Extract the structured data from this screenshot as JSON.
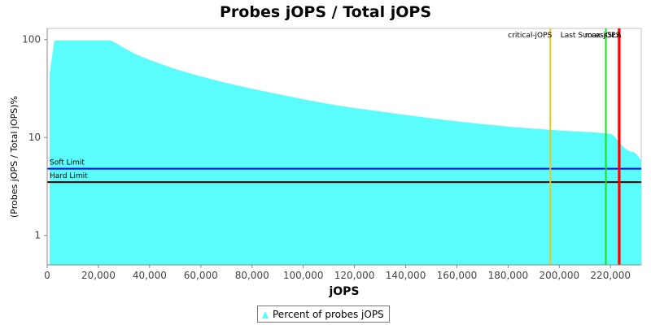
{
  "chart_data": {
    "type": "area",
    "title": "Probes jOPS / Total jOPS",
    "xlabel": "jOPS",
    "ylabel": "(Probes jOPS / Total jOPS)%",
    "xlim": [
      0,
      232000
    ],
    "ylim": [
      0.5,
      130
    ],
    "yscale": "log",
    "x_ticks": [
      0,
      20000,
      40000,
      60000,
      80000,
      100000,
      120000,
      140000,
      160000,
      180000,
      200000,
      220000
    ],
    "x_tick_labels": [
      "0",
      "20,000",
      "40,000",
      "60,000",
      "80,000",
      "100,000",
      "120,000",
      "140,000",
      "160,000",
      "180,000",
      "200,000",
      "220,000"
    ],
    "y_ticks": [
      1,
      10,
      100
    ],
    "y_tick_labels": [
      "1",
      "10",
      "100"
    ],
    "grid": false,
    "legend": "bottom",
    "series": [
      {
        "name": "Percent of probes jOPS",
        "color": "#5afcfc",
        "x": [
          1000,
          2800,
          4000,
          10000,
          20000,
          24800,
          26500,
          30000,
          35000,
          40000,
          50000,
          60000,
          70000,
          80000,
          90000,
          100000,
          110000,
          120000,
          130000,
          140000,
          150000,
          160000,
          170000,
          180000,
          190000,
          200000,
          210000,
          215000,
          219000,
          220500,
          221500,
          223000,
          225000,
          227000,
          229000,
          230000,
          231000,
          232000
        ],
        "y": [
          45,
          97,
          98,
          98,
          98,
          98,
          93,
          82,
          70,
          62,
          50,
          42,
          36,
          31.5,
          27.8,
          24.5,
          22,
          20,
          18.4,
          17,
          15.7,
          14.6,
          13.7,
          12.9,
          12.3,
          11.8,
          11.4,
          11.2,
          11,
          10.8,
          10.3,
          9.2,
          8,
          7.3,
          7.1,
          6.8,
          6.3,
          5.8
        ]
      }
    ],
    "horizontal_lines": [
      {
        "label": "Soft Limit",
        "y": 4.8,
        "color": "#0000ff"
      },
      {
        "label": "Hard Limit",
        "y": 3.5,
        "color": "#000000"
      }
    ],
    "vertical_lines": [
      {
        "label": "critical-jOPS",
        "x": 196500,
        "color": "#f5c518"
      },
      {
        "label": "Last Success",
        "x": 218200,
        "color": "#22d822"
      },
      {
        "label": "max-jOPS",
        "x": 223200,
        "color": "#ff0000"
      },
      {
        "label": "SLA",
        "x": 223600,
        "color": "#ff0000"
      }
    ]
  }
}
